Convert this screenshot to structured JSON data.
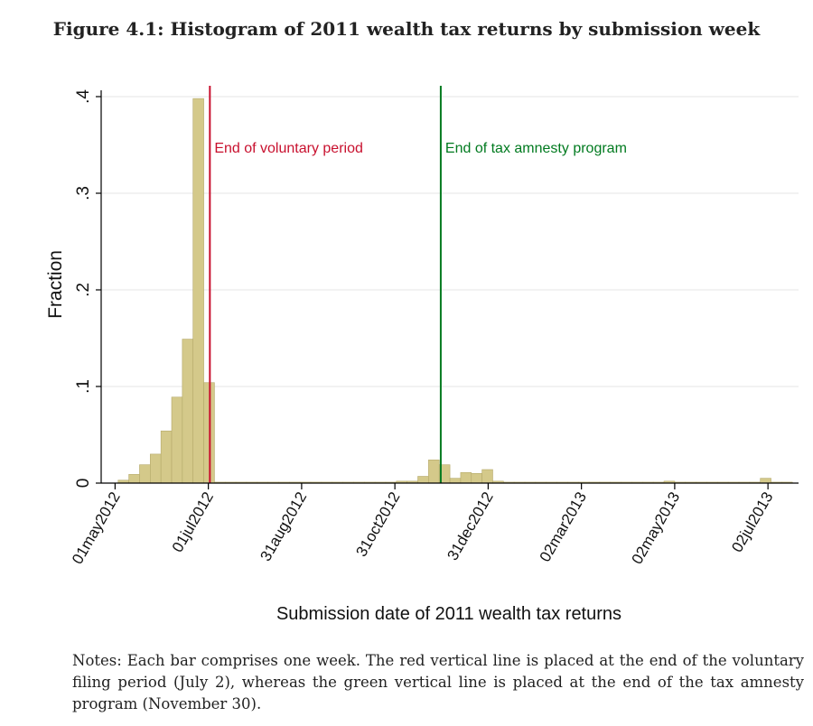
{
  "figure_title": "Figure 4.1: Histogram of 2011 wealth tax returns by submission week",
  "notes": "Notes: Each bar comprises one week. The red vertical line is placed at the end of the voluntary filing period (July 2), whereas the green vertical line is placed at the end of the tax amnesty program (November 30).",
  "chart_data": {
    "type": "bar",
    "title": "",
    "xlabel": "Submission date of 2011 wealth tax returns",
    "ylabel": "Fraction",
    "ylim": [
      0,
      0.4
    ],
    "yticks": [
      {
        "value": 0,
        "label": "0"
      },
      {
        "value": 0.1,
        "label": ".1"
      },
      {
        "value": 0.2,
        "label": ".2"
      },
      {
        "value": 0.3,
        "label": ".3"
      },
      {
        "value": 0.4,
        "label": ".4"
      }
    ],
    "x_axis_type": "date",
    "xlim": [
      "2012-04-29",
      "2013-07-22"
    ],
    "xticks": [
      {
        "date": "2012-05-01",
        "label": "01may2012"
      },
      {
        "date": "2012-07-01",
        "label": "01jul2012"
      },
      {
        "date": "2012-08-31",
        "label": "31aug2012"
      },
      {
        "date": "2012-10-31",
        "label": "31oct2012"
      },
      {
        "date": "2012-12-31",
        "label": "31dec2012"
      },
      {
        "date": "2013-03-02",
        "label": "02mar2013"
      },
      {
        "date": "2013-05-02",
        "label": "02may2013"
      },
      {
        "date": "2013-07-02",
        "label": "02jul2013"
      }
    ],
    "grid": true,
    "bar_color": "#d4c98a",
    "bar_edge_color": "#b5a96a",
    "bin_width_days": 7,
    "bins": [
      {
        "start": "2012-05-03",
        "value": 0.003
      },
      {
        "start": "2012-05-10",
        "value": 0.009
      },
      {
        "start": "2012-05-17",
        "value": 0.019
      },
      {
        "start": "2012-05-24",
        "value": 0.03
      },
      {
        "start": "2012-05-31",
        "value": 0.054
      },
      {
        "start": "2012-06-07",
        "value": 0.089
      },
      {
        "start": "2012-06-14",
        "value": 0.149
      },
      {
        "start": "2012-06-21",
        "value": 0.398
      },
      {
        "start": "2012-06-28",
        "value": 0.104
      },
      {
        "start": "2012-07-05",
        "value": 0.001
      },
      {
        "start": "2012-07-12",
        "value": 0.001
      },
      {
        "start": "2012-07-19",
        "value": 0.001
      },
      {
        "start": "2012-07-26",
        "value": 0.001
      },
      {
        "start": "2012-08-02",
        "value": 0.001
      },
      {
        "start": "2012-08-09",
        "value": 0.001
      },
      {
        "start": "2012-08-16",
        "value": 0.001
      },
      {
        "start": "2012-08-23",
        "value": 0.001
      },
      {
        "start": "2012-08-30",
        "value": 0.001
      },
      {
        "start": "2012-09-06",
        "value": 0.001
      },
      {
        "start": "2012-09-13",
        "value": 0.001
      },
      {
        "start": "2012-09-20",
        "value": 0.001
      },
      {
        "start": "2012-09-27",
        "value": 0.001
      },
      {
        "start": "2012-10-04",
        "value": 0.001
      },
      {
        "start": "2012-10-11",
        "value": 0.001
      },
      {
        "start": "2012-10-18",
        "value": 0.001
      },
      {
        "start": "2012-10-25",
        "value": 0.001
      },
      {
        "start": "2012-11-01",
        "value": 0.002
      },
      {
        "start": "2012-11-08",
        "value": 0.002
      },
      {
        "start": "2012-11-15",
        "value": 0.007
      },
      {
        "start": "2012-11-22",
        "value": 0.024
      },
      {
        "start": "2012-11-29",
        "value": 0.019
      },
      {
        "start": "2012-12-06",
        "value": 0.005
      },
      {
        "start": "2012-12-13",
        "value": 0.011
      },
      {
        "start": "2012-12-20",
        "value": 0.01
      },
      {
        "start": "2012-12-27",
        "value": 0.014
      },
      {
        "start": "2013-01-03",
        "value": 0.002
      },
      {
        "start": "2013-01-10",
        "value": 0.001
      },
      {
        "start": "2013-01-17",
        "value": 0.001
      },
      {
        "start": "2013-01-24",
        "value": 0.001
      },
      {
        "start": "2013-01-31",
        "value": 0.001
      },
      {
        "start": "2013-02-07",
        "value": 0.001
      },
      {
        "start": "2013-02-14",
        "value": 0.001
      },
      {
        "start": "2013-02-21",
        "value": 0.001
      },
      {
        "start": "2013-02-28",
        "value": 0.001
      },
      {
        "start": "2013-03-07",
        "value": 0.001
      },
      {
        "start": "2013-03-14",
        "value": 0.001
      },
      {
        "start": "2013-03-21",
        "value": 0.001
      },
      {
        "start": "2013-03-28",
        "value": 0.001
      },
      {
        "start": "2013-04-04",
        "value": 0.001
      },
      {
        "start": "2013-04-11",
        "value": 0.001
      },
      {
        "start": "2013-04-18",
        "value": 0.001
      },
      {
        "start": "2013-04-25",
        "value": 0.002
      },
      {
        "start": "2013-05-02",
        "value": 0.001
      },
      {
        "start": "2013-05-09",
        "value": 0.001
      },
      {
        "start": "2013-05-16",
        "value": 0.001
      },
      {
        "start": "2013-05-23",
        "value": 0.001
      },
      {
        "start": "2013-05-30",
        "value": 0.001
      },
      {
        "start": "2013-06-06",
        "value": 0.001
      },
      {
        "start": "2013-06-13",
        "value": 0.001
      },
      {
        "start": "2013-06-20",
        "value": 0.001
      },
      {
        "start": "2013-06-27",
        "value": 0.005
      },
      {
        "start": "2013-07-04",
        "value": 0.001
      },
      {
        "start": "2013-07-11",
        "value": 0.001
      }
    ],
    "vertical_lines": [
      {
        "date": "2012-07-02",
        "label": "End of voluntary period",
        "color": "#c8102e"
      },
      {
        "date": "2012-11-30",
        "label": "End of tax amnesty program",
        "color": "#007a1f"
      }
    ]
  }
}
